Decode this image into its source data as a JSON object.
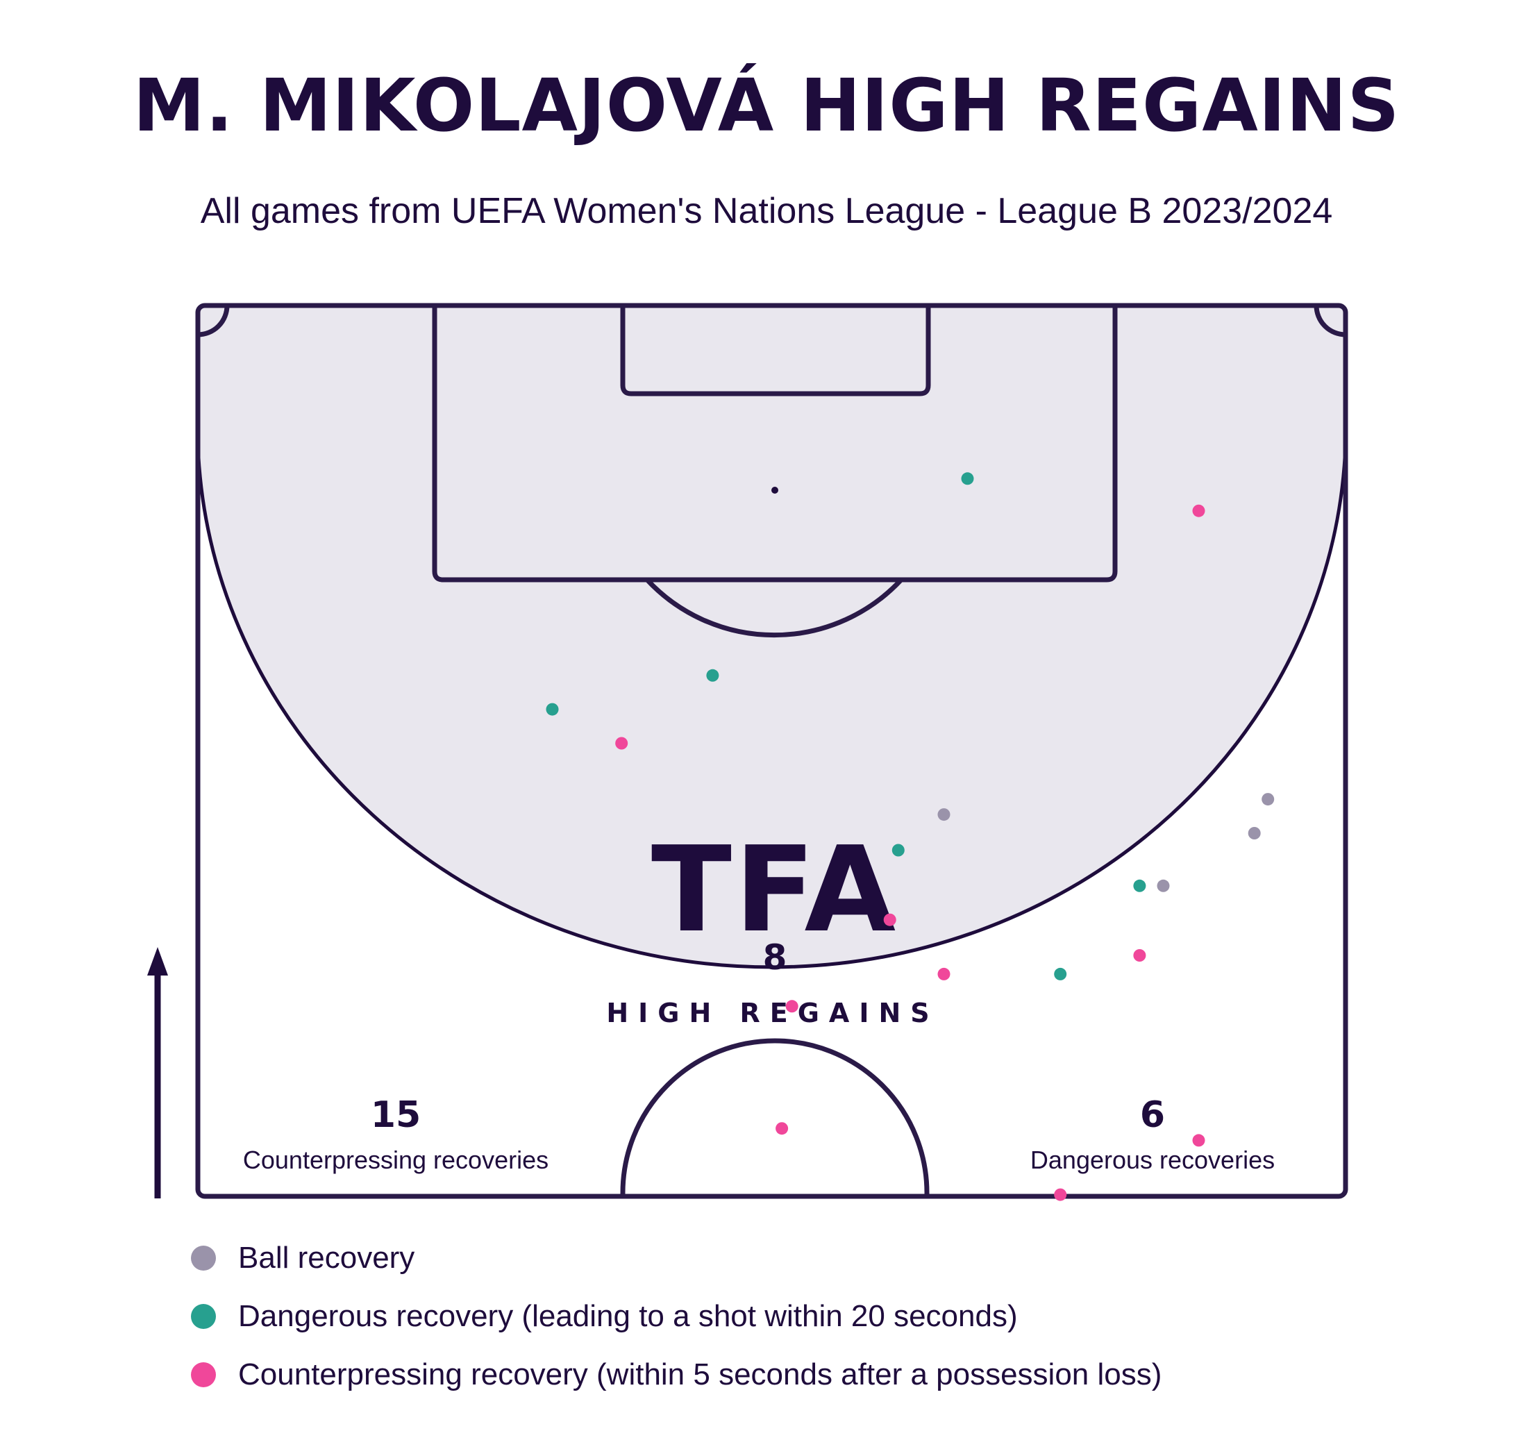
{
  "title": "M. MIKOLAJOVÁ HIGH REGAINS",
  "subtitle": "All games from UEFA Women's Nations League - League B 2023/2024",
  "colors": {
    "ink": "#1e0c3c",
    "pitch_zone": "#e9e7ee",
    "ball_recovery": "#9a93aa",
    "dangerous": "#27a08f",
    "counterpress": "#f0479a"
  },
  "stats": {
    "high_regains_value": "8",
    "high_regains_label": "HIGH REGAINS",
    "counterpressing_value": "15",
    "counterpressing_label": "Counterpressing recoveries",
    "dangerous_value": "6",
    "dangerous_label": "Dangerous recoveries"
  },
  "logo_text": "TFA",
  "legend": [
    {
      "label": "Ball recovery",
      "color_key": "ball_recovery"
    },
    {
      "label": "Dangerous recovery (leading to a shot within 20 seconds)",
      "color_key": "dangerous"
    },
    {
      "label": "Counterpressing recovery (within 5 seconds after a possession loss)",
      "color_key": "counterpress"
    }
  ],
  "chart_data": {
    "type": "scatter",
    "x_range_m": [
      0,
      68
    ],
    "y_range_m_from_goal_line": [
      0,
      52.5
    ],
    "series": [
      {
        "category": "ball_recovery",
        "points": [
          {
            "x": 44.2,
            "y": 30.0
          },
          {
            "x": 63.4,
            "y": 29.1
          },
          {
            "x": 62.6,
            "y": 31.1
          },
          {
            "x": 57.2,
            "y": 34.2
          }
        ]
      },
      {
        "category": "dangerous",
        "points": [
          {
            "x": 45.6,
            "y": 10.2
          },
          {
            "x": 30.5,
            "y": 21.8
          },
          {
            "x": 21.0,
            "y": 23.8
          },
          {
            "x": 41.5,
            "y": 32.1
          },
          {
            "x": 55.8,
            "y": 34.2
          },
          {
            "x": 51.1,
            "y": 39.4
          }
        ]
      },
      {
        "category": "counterpress",
        "points": [
          {
            "x": 59.3,
            "y": 12.1
          },
          {
            "x": 25.1,
            "y": 25.8
          },
          {
            "x": 41.0,
            "y": 36.2
          },
          {
            "x": 55.8,
            "y": 38.3
          },
          {
            "x": 44.2,
            "y": 39.4
          },
          {
            "x": 35.2,
            "y": 41.3
          },
          {
            "x": 34.6,
            "y": 48.5
          },
          {
            "x": 59.3,
            "y": 49.2
          },
          {
            "x": 51.1,
            "y": 52.4
          }
        ]
      }
    ]
  }
}
